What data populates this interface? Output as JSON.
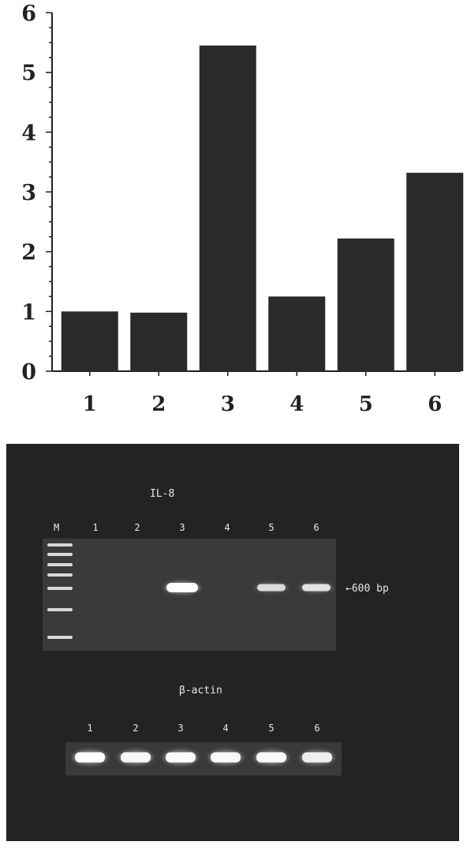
{
  "chart_data": {
    "type": "bar",
    "categories": [
      "1",
      "2",
      "3",
      "4",
      "5",
      "6"
    ],
    "values": [
      1.0,
      0.98,
      5.45,
      1.25,
      2.22,
      3.32
    ],
    "ylim": [
      0,
      6
    ],
    "yticks": [
      "0",
      "1",
      "2",
      "3",
      "4",
      "5",
      "6"
    ],
    "bar_color": "#2a2a2a",
    "grid": false
  },
  "gel": {
    "il8_label": "IL-8",
    "marker_label": "M",
    "lane_labels": [
      "1",
      "2",
      "3",
      "4",
      "5",
      "6"
    ],
    "band_size_label": "←600 bp",
    "il8_band_intensity": [
      0,
      0,
      1.0,
      0,
      0.55,
      0.65
    ],
    "actin_label": "β-actin",
    "actin_lane_labels": [
      "1",
      "2",
      "3",
      "4",
      "5",
      "6"
    ],
    "actin_band_intensity": [
      1.0,
      0.9,
      0.95,
      0.92,
      0.95,
      0.8
    ]
  }
}
